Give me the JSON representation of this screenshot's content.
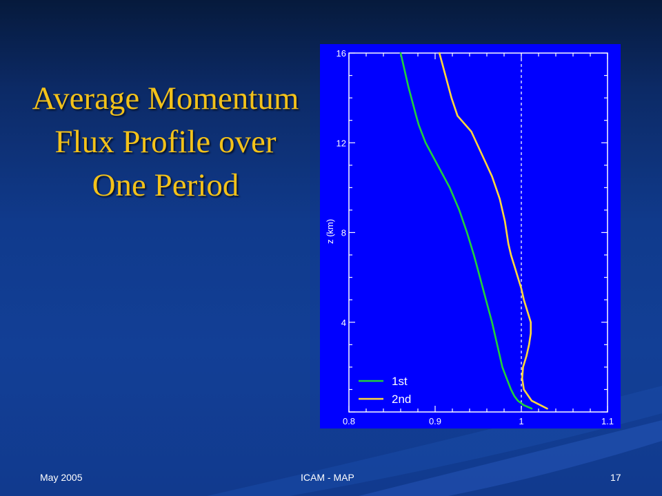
{
  "slide": {
    "title": "Average Momentum Flux Profile over One Period",
    "footer_left": "May 2005",
    "footer_center": "ICAM - MAP",
    "footer_right": "17"
  },
  "colors": {
    "plot_background": "#0000ff",
    "title_color": "#f3c21a",
    "series_1st": "#22d03a",
    "series_2nd": "#ffd93a",
    "axis_color": "#ffffff"
  },
  "chart_data": {
    "type": "line",
    "title": "",
    "xlabel": "",
    "ylabel": "z (km)",
    "xlim": [
      0.8,
      1.1
    ],
    "ylim": [
      0,
      16
    ],
    "xticks": [
      "0.8",
      "0.9",
      "1",
      "1.1"
    ],
    "yticks": [
      "4",
      "8",
      "12",
      "16"
    ],
    "reference_line": {
      "x": 1,
      "style": "dashed"
    },
    "legend_position": "bottom-left",
    "series": [
      {
        "name": "1st",
        "color": "#22d03a",
        "x": [
          0.86,
          0.869,
          0.878,
          0.881,
          0.889,
          0.903,
          0.917,
          0.928,
          0.937,
          0.945,
          0.952,
          0.959,
          0.966,
          0.972,
          0.978,
          0.983,
          0.988,
          0.992,
          0.996,
          1.003,
          1.012
        ],
        "y": [
          16,
          14.5,
          13.2,
          12.8,
          12.0,
          11.0,
          10.0,
          9.0,
          8.0,
          7.0,
          6.0,
          5.0,
          4.0,
          3.0,
          2.0,
          1.5,
          1.0,
          0.7,
          0.5,
          0.3,
          0.15
        ]
      },
      {
        "name": "2nd",
        "color": "#ffd93a",
        "x": [
          0.905,
          0.912,
          0.919,
          0.926,
          0.942,
          0.954,
          0.966,
          0.975,
          0.981,
          0.985,
          0.988,
          0.992,
          0.996,
          1.0,
          1.003,
          1.007,
          1.011,
          1.011,
          1.009,
          1.006,
          1.002,
          1.001,
          1.003,
          1.012,
          1.03
        ],
        "y": [
          16,
          15.0,
          14.0,
          13.2,
          12.5,
          11.5,
          10.5,
          9.5,
          8.5,
          7.5,
          7.0,
          6.5,
          6.0,
          5.5,
          5.0,
          4.5,
          4.0,
          3.5,
          3.0,
          2.5,
          2.0,
          1.5,
          1.0,
          0.5,
          0.15
        ]
      }
    ]
  }
}
